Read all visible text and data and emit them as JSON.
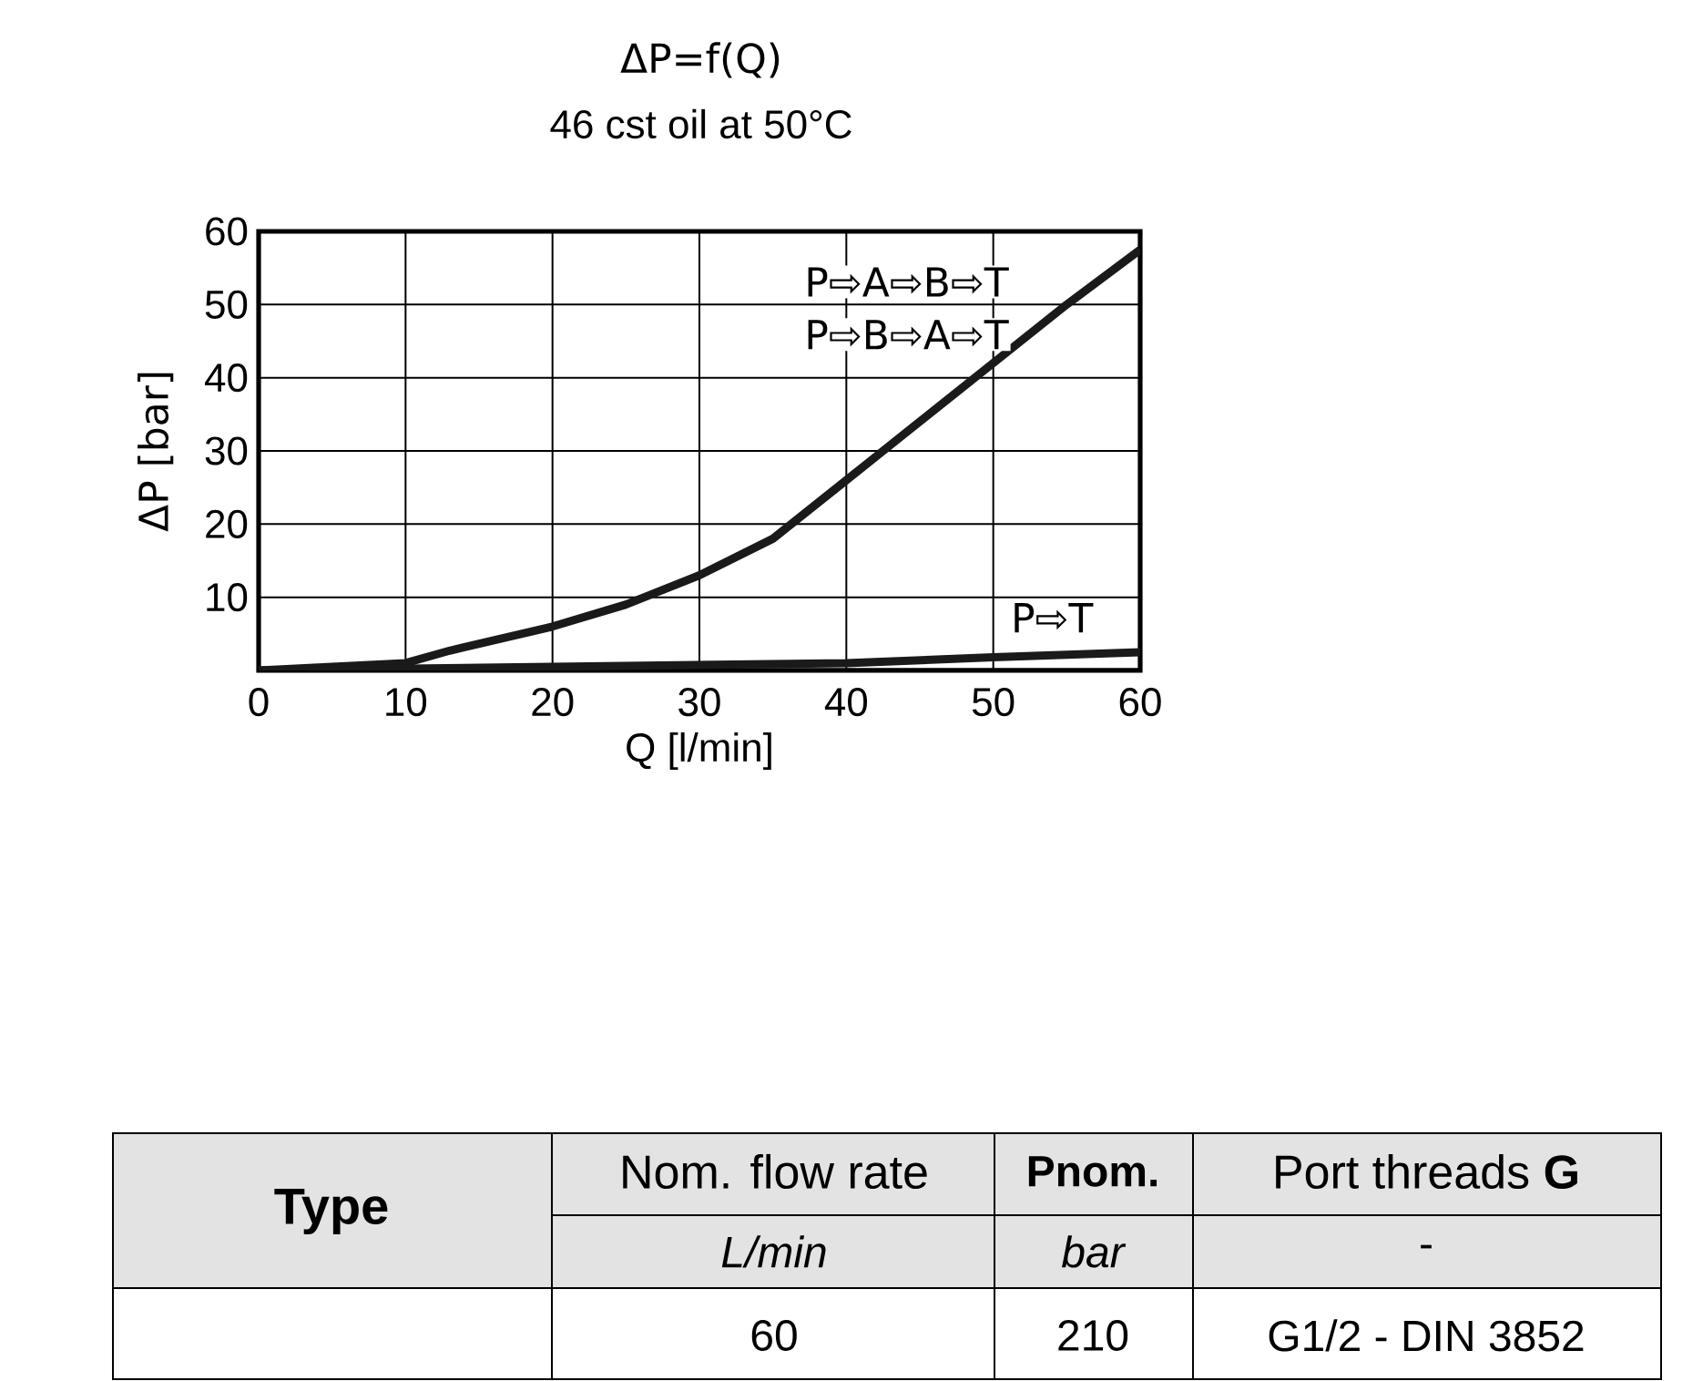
{
  "chart_data": {
    "type": "line",
    "title": "ΔP=f(Q)",
    "subtitle": "46 cst oil at 50°C",
    "xlabel": "Q [l/min]",
    "ylabel": "ΔP [bar]",
    "x": [
      0,
      10,
      13,
      20,
      25,
      30,
      35,
      40,
      45,
      50,
      55,
      60
    ],
    "series": [
      {
        "name": "P⇨A⇨B⇨T",
        "color": "#1a1a1a",
        "values": [
          0,
          1,
          2.7,
          6,
          9,
          13,
          18,
          26,
          34,
          42,
          50,
          57.5
        ]
      },
      {
        "name": "P⇨T",
        "color": "#1a1a1a",
        "x": [
          0,
          20,
          40,
          50,
          60
        ],
        "values": [
          0,
          0.5,
          1,
          1.8,
          2.5
        ]
      }
    ],
    "xlim": [
      0,
      60
    ],
    "ylim": [
      0,
      60
    ],
    "xticks": [
      0,
      10,
      20,
      30,
      40,
      50,
      60
    ],
    "yticks": [
      10,
      20,
      30,
      40,
      50,
      60
    ],
    "grid": true,
    "annotations": [
      "P⇨B⇨A⇨T",
      "Type",
      "Nom. flow rate",
      "Pnom.",
      "Port threads **G**",
      "L/min",
      "bar",
      "-",
      "60",
      "210",
      "G1/2 - DIN 3852"
    ]
  }
}
